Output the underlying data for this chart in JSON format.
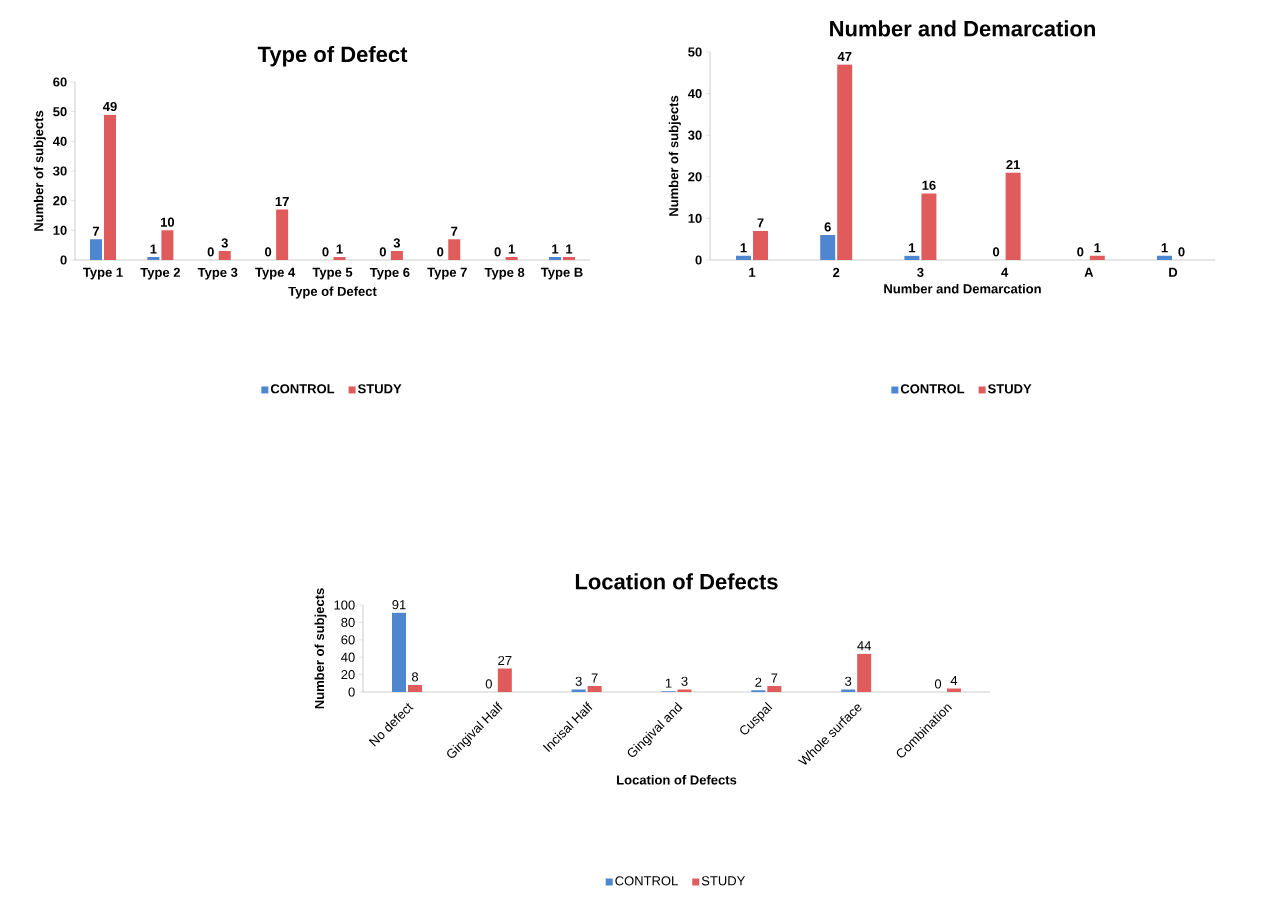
{
  "chart_data": [
    {
      "type": "bar",
      "title": "Type of Defect",
      "xlabel": "Type of Defect",
      "ylabel": "Number of subjects",
      "categories": [
        "Type 1",
        "Type 2",
        "Type 3",
        "Type 4",
        "Type 5",
        "Type 6",
        "Type 7",
        "Type 8",
        "Type B"
      ],
      "series": [
        {
          "name": "CONTROL",
          "color": "#4f86d0",
          "values": [
            7,
            1,
            0,
            0,
            0,
            0,
            0,
            0,
            1
          ]
        },
        {
          "name": "STUDY",
          "color": "#e05c5c",
          "values": [
            49,
            10,
            3,
            17,
            1,
            3,
            7,
            1,
            1
          ]
        }
      ],
      "ylim": [
        0,
        60
      ],
      "yticks": [
        0,
        10,
        20,
        30,
        40,
        50,
        60
      ],
      "data_labels": true,
      "legend": "bottom"
    },
    {
      "type": "bar",
      "title": "Number and Demarcation",
      "xlabel": "Number and Demarcation",
      "ylabel": "Number of subjects",
      "categories": [
        "1",
        "2",
        "3",
        "4",
        "A",
        "D"
      ],
      "series": [
        {
          "name": "CONTROL",
          "color": "#4f86d0",
          "values": [
            1,
            6,
            1,
            0,
            0,
            1
          ]
        },
        {
          "name": "STUDY",
          "color": "#e05c5c",
          "values": [
            7,
            47,
            16,
            21,
            1,
            0
          ]
        }
      ],
      "ylim": [
        0,
        50
      ],
      "yticks": [
        0,
        10,
        20,
        30,
        40,
        50
      ],
      "data_labels": true,
      "legend": "bottom"
    },
    {
      "type": "bar",
      "title": "Location of Defects",
      "xlabel": "Location of Defects",
      "ylabel": "Number of subjects",
      "categories": [
        "No defect",
        "Gingival Half",
        "Incisal Half",
        "Gingival and",
        "Cuspal",
        "Whole surface",
        "Combination"
      ],
      "series": [
        {
          "name": "CONTROL",
          "color": "#4f86d0",
          "values": [
            91,
            0,
            3,
            1,
            2,
            3,
            0
          ]
        },
        {
          "name": "STUDY",
          "color": "#e05c5c",
          "values": [
            8,
            27,
            7,
            3,
            7,
            44,
            4
          ]
        }
      ],
      "ylim": [
        0,
        100
      ],
      "yticks": [
        0,
        20,
        40,
        60,
        80,
        100
      ],
      "data_labels": true,
      "legend": "bottom"
    }
  ]
}
